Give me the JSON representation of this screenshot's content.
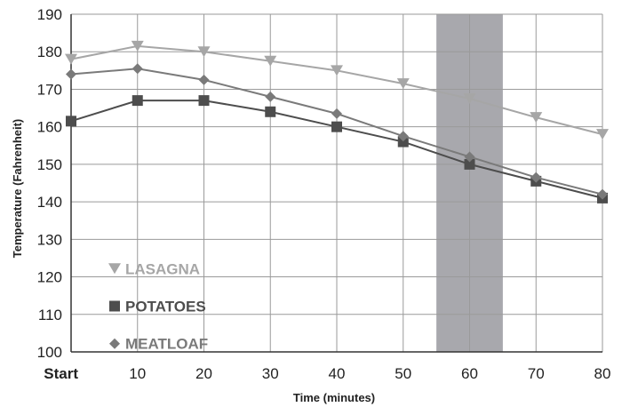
{
  "chart_data": {
    "type": "line",
    "xlabel": "Time (minutes)",
    "ylabel": "Temperature (Fahrenheit)",
    "categories": [
      "Start",
      "10",
      "20",
      "30",
      "40",
      "50",
      "60",
      "70",
      "80"
    ],
    "x": [
      0,
      10,
      20,
      30,
      40,
      50,
      60,
      70,
      80
    ],
    "ylim": [
      100,
      190
    ],
    "yticks": [
      100,
      110,
      120,
      130,
      140,
      150,
      160,
      170,
      180,
      190
    ],
    "grid": true,
    "shaded_band": {
      "x_from": 55,
      "x_to": 65,
      "color": "#a8a8ad"
    },
    "legend_position": "bottom-left",
    "series": [
      {
        "name": "LASAGNA",
        "marker": "triangle-down",
        "color": "#a6a6a6",
        "values": [
          178,
          181.5,
          180,
          177.5,
          175,
          171.5,
          167.5,
          162.5,
          158
        ]
      },
      {
        "name": "POTATOES",
        "marker": "square",
        "color": "#4d4d4d",
        "values": [
          161.5,
          167,
          167,
          164,
          160,
          156,
          150,
          145.5,
          141
        ]
      },
      {
        "name": "MEATLOAF",
        "marker": "diamond",
        "color": "#7a7a7a",
        "values": [
          174,
          175.5,
          172.5,
          168,
          163.5,
          157.5,
          152,
          146.5,
          142
        ]
      }
    ]
  }
}
